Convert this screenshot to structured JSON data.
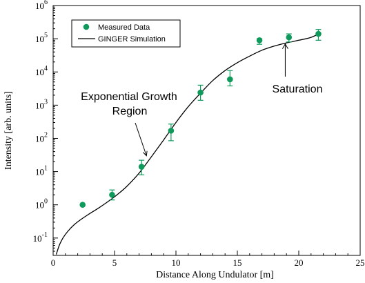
{
  "chart_data": {
    "type": "scatter",
    "xlabel": "Distance Along Undulator [m]",
    "ylabel": "Intensity [arb. units]",
    "xlim": [
      0,
      25
    ],
    "ylim": [
      0.03,
      1000000
    ],
    "yscale": "log",
    "grid": false,
    "legend_position": "top-left",
    "x_ticks": [
      0,
      5,
      10,
      15,
      20,
      25
    ],
    "y_ticks": [
      {
        "value": 0.1,
        "base": "10",
        "exp": "-1"
      },
      {
        "value": 1,
        "base": "10",
        "exp": "0"
      },
      {
        "value": 10,
        "base": "10",
        "exp": "1"
      },
      {
        "value": 100,
        "base": "10",
        "exp": "2"
      },
      {
        "value": 1000,
        "base": "10",
        "exp": "3"
      },
      {
        "value": 10000,
        "base": "10",
        "exp": "4"
      },
      {
        "value": 100000,
        "base": "10",
        "exp": "5"
      },
      {
        "value": 1000000,
        "base": "10",
        "exp": "6"
      }
    ],
    "series": [
      {
        "name": "Measured Data",
        "kind": "points",
        "color": "#0f9a5c",
        "points": [
          {
            "x": 2.4,
            "y": 1.0,
            "ylow": 1.0,
            "yhigh": 1.0
          },
          {
            "x": 4.8,
            "y": 2.0,
            "ylow": 1.4,
            "yhigh": 2.8
          },
          {
            "x": 7.2,
            "y": 14,
            "ylow": 8,
            "yhigh": 22
          },
          {
            "x": 9.6,
            "y": 170,
            "ylow": 85,
            "yhigh": 270
          },
          {
            "x": 12.0,
            "y": 2400,
            "ylow": 1400,
            "yhigh": 4000
          },
          {
            "x": 14.4,
            "y": 6000,
            "ylow": 3800,
            "yhigh": 11000
          },
          {
            "x": 16.8,
            "y": 90000,
            "ylow": 68000,
            "yhigh": 100000
          },
          {
            "x": 19.2,
            "y": 110000,
            "ylow": 80000,
            "yhigh": 140000
          },
          {
            "x": 21.6,
            "y": 140000,
            "ylow": 90000,
            "yhigh": 190000
          }
        ]
      },
      {
        "name": "GINGER Simulation",
        "kind": "line",
        "color": "#000000",
        "points": [
          {
            "x": 0.25,
            "y": 0.032
          },
          {
            "x": 0.5,
            "y": 0.06
          },
          {
            "x": 0.8,
            "y": 0.1
          },
          {
            "x": 1.2,
            "y": 0.16
          },
          {
            "x": 1.7,
            "y": 0.25
          },
          {
            "x": 2.3,
            "y": 0.37
          },
          {
            "x": 3.0,
            "y": 0.55
          },
          {
            "x": 3.7,
            "y": 0.8
          },
          {
            "x": 4.4,
            "y": 1.2
          },
          {
            "x": 5.2,
            "y": 2.0
          },
          {
            "x": 6.0,
            "y": 3.6
          },
          {
            "x": 7.0,
            "y": 9
          },
          {
            "x": 8.0,
            "y": 28
          },
          {
            "x": 9.0,
            "y": 90
          },
          {
            "x": 10.0,
            "y": 300
          },
          {
            "x": 11.0,
            "y": 900
          },
          {
            "x": 12.0,
            "y": 2300
          },
          {
            "x": 13.0,
            "y": 5500
          },
          {
            "x": 14.0,
            "y": 11000
          },
          {
            "x": 15.0,
            "y": 19000
          },
          {
            "x": 16.0,
            "y": 30000
          },
          {
            "x": 17.0,
            "y": 45000
          },
          {
            "x": 18.0,
            "y": 60000
          },
          {
            "x": 19.0,
            "y": 75000
          },
          {
            "x": 20.0,
            "y": 90000
          },
          {
            "x": 21.0,
            "y": 110000
          },
          {
            "x": 21.8,
            "y": 150000
          }
        ]
      }
    ],
    "annotations": [
      {
        "lines": [
          "Exponential Growth",
          "Region"
        ],
        "arrow_to": {
          "x": 7.6,
          "y": 30
        }
      },
      {
        "lines": [
          "Saturation"
        ],
        "arrow_to": {
          "x": 18.9,
          "y": 70000
        }
      }
    ]
  }
}
